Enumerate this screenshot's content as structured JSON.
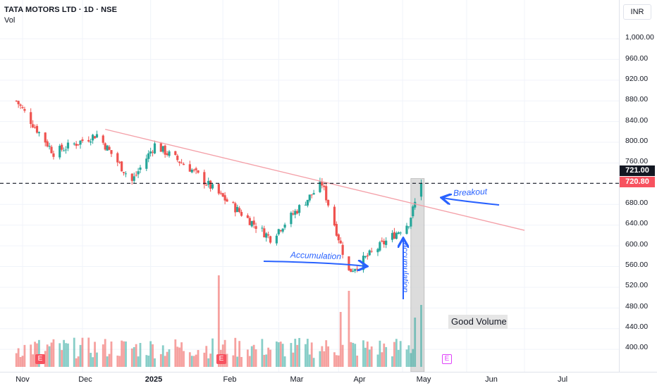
{
  "header": {
    "title": "TATA MOTORS LTD · 1D · NSE",
    "indicator": "Vol"
  },
  "currency_button": "INR",
  "price_badges": {
    "last": "721.00",
    "level": "720.80"
  },
  "annotations": {
    "accumulation_1": "Accumulation",
    "accumulation_2": "accumulation",
    "breakout": "Breakout",
    "good_volume": "Good Volume"
  },
  "earnings_badge_label": "E",
  "colors": {
    "up": "#26a69a",
    "down": "#ef5350",
    "trendline": "#f4a0a8",
    "annotation": "#2962ff",
    "badge_last": "#131722",
    "badge_level": "#f7525f"
  },
  "chart_data": {
    "type": "candlestick",
    "title": "TATA MOTORS LTD · 1D · NSE",
    "y_range": [
      360,
      1040
    ],
    "y_ticks": [
      "1,000.00",
      "960.00",
      "920.00",
      "880.00",
      "840.00",
      "800.00",
      "760.00",
      "680.00",
      "640.00",
      "600.00",
      "560.00",
      "520.00",
      "480.00",
      "440.00",
      "400.00"
    ],
    "x_labels": [
      "Nov",
      "Dec",
      "2025",
      "Feb",
      "Mar",
      "Apr",
      "May",
      "Jun",
      "Jul"
    ],
    "horizontal_level": 720.8,
    "last_price": 721.0,
    "trendline": {
      "start": [
        "2024-12-10",
        825
      ],
      "end": [
        "2025-07-01",
        630
      ]
    },
    "key_closes": [
      {
        "date": "2024-10-28",
        "close": 880
      },
      {
        "date": "2024-11-15",
        "close": 780
      },
      {
        "date": "2024-12-06",
        "close": 815
      },
      {
        "date": "2024-12-23",
        "close": 725
      },
      {
        "date": "2025-01-03",
        "close": 795
      },
      {
        "date": "2025-01-20",
        "close": 750
      },
      {
        "date": "2025-02-03",
        "close": 700
      },
      {
        "date": "2025-02-28",
        "close": 615
      },
      {
        "date": "2025-03-25",
        "close": 720
      },
      {
        "date": "2025-04-07",
        "close": 550
      },
      {
        "date": "2025-05-06",
        "close": 645
      },
      {
        "date": "2025-05-12",
        "close": 720
      }
    ],
    "volume_spikes": [
      {
        "date": "2025-02-03",
        "note": "largest volume bar"
      },
      {
        "date": "2025-04-07",
        "note": "high volume"
      },
      {
        "date": "2025-05-12",
        "note": "Good Volume"
      }
    ]
  }
}
